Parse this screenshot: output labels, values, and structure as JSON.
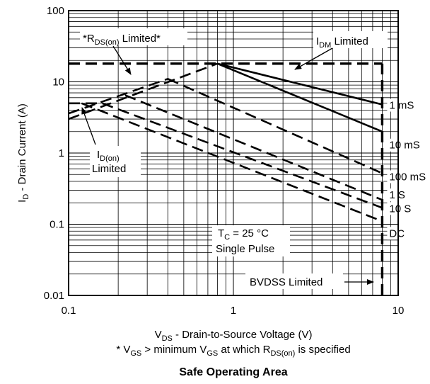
{
  "chart_data": {
    "type": "line",
    "title": "Safe Operating Area",
    "x_scale": "log",
    "y_scale": "log",
    "xlim": [
      0.1,
      10
    ],
    "ylim": [
      0.01,
      100
    ],
    "grid": true,
    "x_ticks": [
      "0.1",
      "1",
      "10"
    ],
    "y_ticks": [
      "100",
      "10",
      "1",
      "0.1",
      "0.01"
    ],
    "xlabel": {
      "main": "V",
      "sub": "DS",
      "rest": " - Drain-to-Source Voltage (V)"
    },
    "ylabel": {
      "main": "I",
      "sub": "D",
      "rest": " - Drain Current (A)"
    },
    "footnote": {
      "p1": "* V",
      "s1": "GS",
      "p2": " > minimum V",
      "s2": "GS",
      "p3": " at which R",
      "s3": "DS(on)",
      "p4": " is specified"
    },
    "annotations": {
      "rds": {
        "p1": "*R",
        "s1": "DS(on)",
        "p2": " Limited*"
      },
      "idm": {
        "p1": "I",
        "s1": "DM",
        "p2": " Limited"
      },
      "idon": {
        "p1": "I",
        "s1": "D(on)",
        "line2": "Limited"
      },
      "tc": {
        "p1": "T",
        "s1": "C",
        "p2": " = 25 °C",
        "line2": "Single Pulse"
      },
      "bvdss": "BVDSS Limited"
    },
    "series": [
      {
        "name": "1 mS",
        "points": [
          [
            0.8,
            18
          ],
          [
            8,
            4.8
          ]
        ]
      },
      {
        "name": "10 mS",
        "points": [
          [
            0.8,
            18
          ],
          [
            8,
            2
          ]
        ]
      },
      {
        "name": "100 mS",
        "points": [
          [
            0.4,
            11
          ],
          [
            8,
            0.52
          ]
        ]
      },
      {
        "name": "1 S",
        "points": [
          [
            0.22,
            6.5
          ],
          [
            8,
            0.22
          ]
        ]
      },
      {
        "name": "10 S",
        "points": [
          [
            0.16,
            5
          ],
          [
            8,
            0.17
          ]
        ]
      },
      {
        "name": "DC",
        "points": [
          [
            0.12,
            5
          ],
          [
            8,
            0.11
          ]
        ]
      },
      {
        "name": "",
        "points": [
          [
            0.1,
            18
          ],
          [
            8,
            18
          ]
        ]
      },
      {
        "name": "",
        "points": [
          [
            0.1,
            5
          ],
          [
            0.16,
            5
          ]
        ]
      },
      {
        "name": "",
        "points": [
          [
            0.1,
            3
          ],
          [
            0.8,
            18
          ]
        ]
      },
      {
        "name": "",
        "points": [
          [
            0.1,
            3.6
          ],
          [
            0.4,
            11
          ]
        ]
      },
      {
        "name": "",
        "points": [
          [
            8,
            0.01
          ],
          [
            8,
            18
          ]
        ]
      }
    ]
  }
}
